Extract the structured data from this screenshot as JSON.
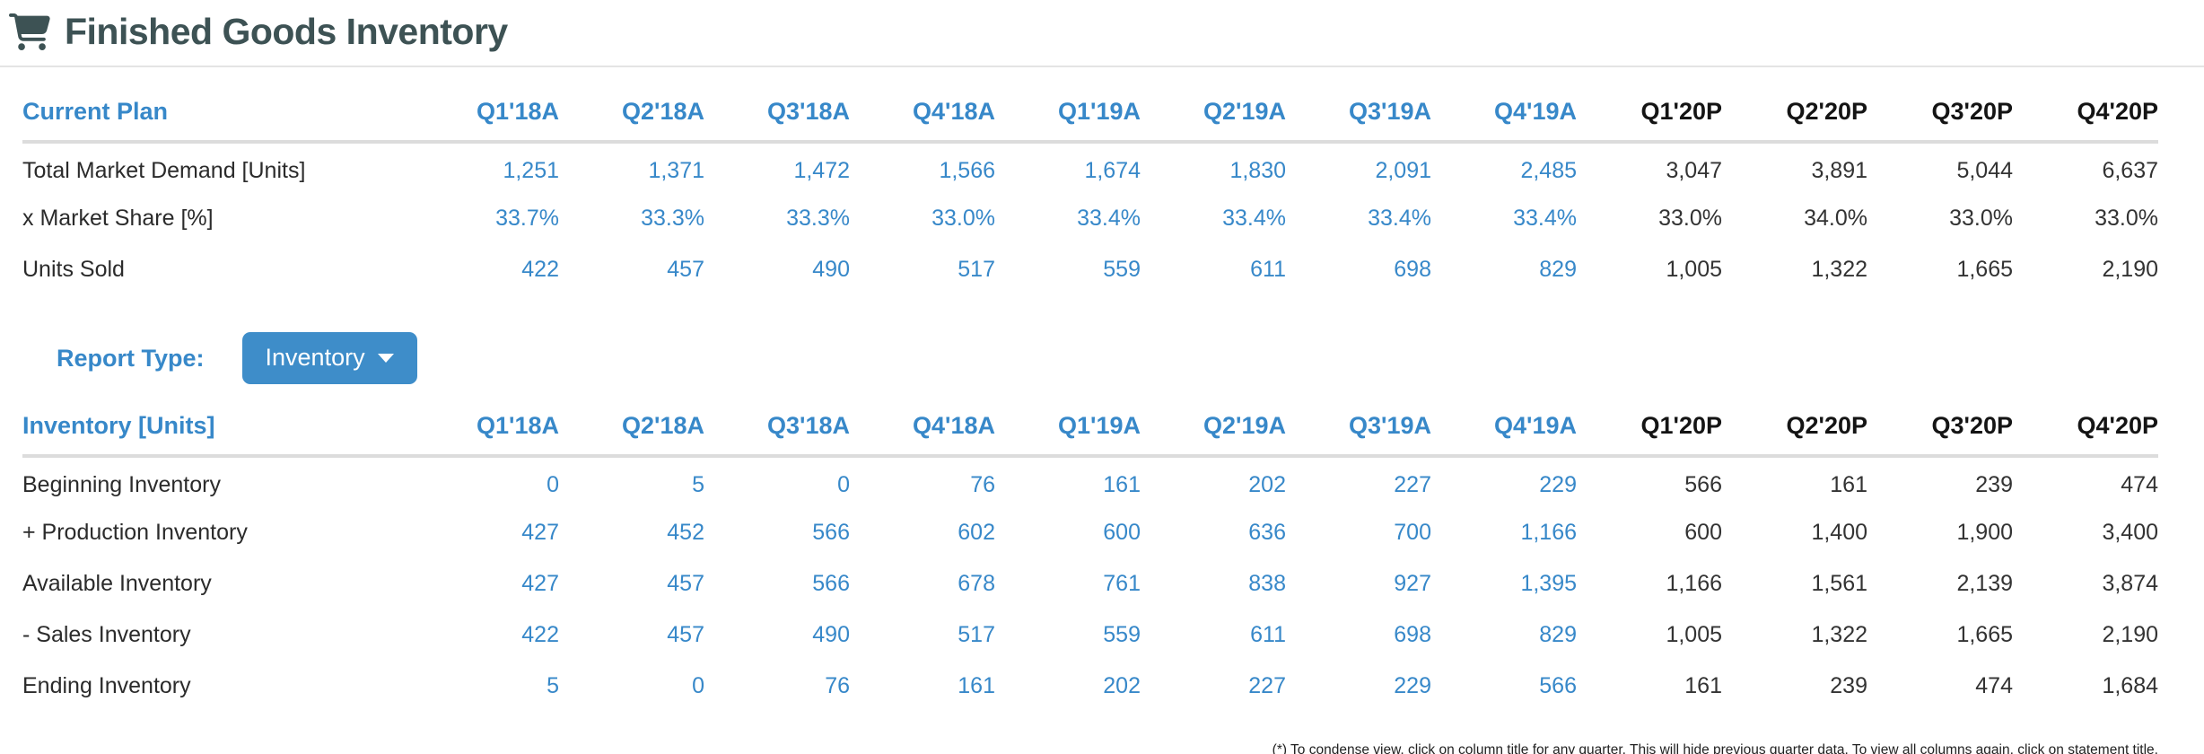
{
  "header": {
    "title": "Finished Goods Inventory",
    "icon": "shopping-cart-icon"
  },
  "colors": {
    "accent_blue": "#3788c9",
    "button_blue": "#3e8dc9",
    "title_dark": "#3d5254",
    "projected_black": "#141414",
    "divider_gray": "#dcdcdc"
  },
  "quarters": [
    {
      "label": "Q1'18A",
      "status": "actual"
    },
    {
      "label": "Q2'18A",
      "status": "actual"
    },
    {
      "label": "Q3'18A",
      "status": "actual"
    },
    {
      "label": "Q4'18A",
      "status": "actual"
    },
    {
      "label": "Q1'19A",
      "status": "actual"
    },
    {
      "label": "Q2'19A",
      "status": "actual"
    },
    {
      "label": "Q3'19A",
      "status": "actual"
    },
    {
      "label": "Q4'19A",
      "status": "actual"
    },
    {
      "label": "Q1'20P",
      "status": "projected"
    },
    {
      "label": "Q2'20P",
      "status": "projected"
    },
    {
      "label": "Q3'20P",
      "status": "projected"
    },
    {
      "label": "Q4'20P",
      "status": "projected"
    }
  ],
  "current_plan": {
    "title": "Current Plan",
    "rows": [
      {
        "label": "Total Market Demand [Units]",
        "values": [
          "1,251",
          "1,371",
          "1,472",
          "1,566",
          "1,674",
          "1,830",
          "2,091",
          "2,485",
          "3,047",
          "3,891",
          "5,044",
          "6,637"
        ]
      },
      {
        "label": "x Market Share [%]",
        "values": [
          "33.7%",
          "33.3%",
          "33.3%",
          "33.0%",
          "33.4%",
          "33.4%",
          "33.4%",
          "33.4%",
          "33.0%",
          "34.0%",
          "33.0%",
          "33.0%"
        ]
      },
      {
        "label": "Units Sold",
        "values": [
          "422",
          "457",
          "490",
          "517",
          "559",
          "611",
          "698",
          "829",
          "1,005",
          "1,322",
          "1,665",
          "2,190"
        ]
      }
    ]
  },
  "report_type": {
    "label": "Report Type:",
    "selected": "Inventory",
    "dropdown_icon": "chevron-down-icon"
  },
  "inventory": {
    "title": "Inventory [Units]",
    "rows": [
      {
        "label": "Beginning Inventory",
        "values": [
          "0",
          "5",
          "0",
          "76",
          "161",
          "202",
          "227",
          "229",
          "566",
          "161",
          "239",
          "474"
        ]
      },
      {
        "label": "+ Production Inventory",
        "values": [
          "427",
          "452",
          "566",
          "602",
          "600",
          "636",
          "700",
          "1,166",
          "600",
          "1,400",
          "1,900",
          "3,400"
        ]
      },
      {
        "label": "Available Inventory",
        "values": [
          "427",
          "457",
          "566",
          "678",
          "761",
          "838",
          "927",
          "1,395",
          "1,166",
          "1,561",
          "2,139",
          "3,874"
        ]
      },
      {
        "label": "- Sales Inventory",
        "values": [
          "422",
          "457",
          "490",
          "517",
          "559",
          "611",
          "698",
          "829",
          "1,005",
          "1,322",
          "1,665",
          "2,190"
        ]
      },
      {
        "label": "Ending Inventory",
        "values": [
          "5",
          "0",
          "76",
          "161",
          "202",
          "227",
          "229",
          "566",
          "161",
          "239",
          "474",
          "1,684"
        ]
      }
    ]
  },
  "footnote": "(*) To condense view, click on column title for any quarter. This will hide previous quarter data. To view all columns again, click on statement title."
}
